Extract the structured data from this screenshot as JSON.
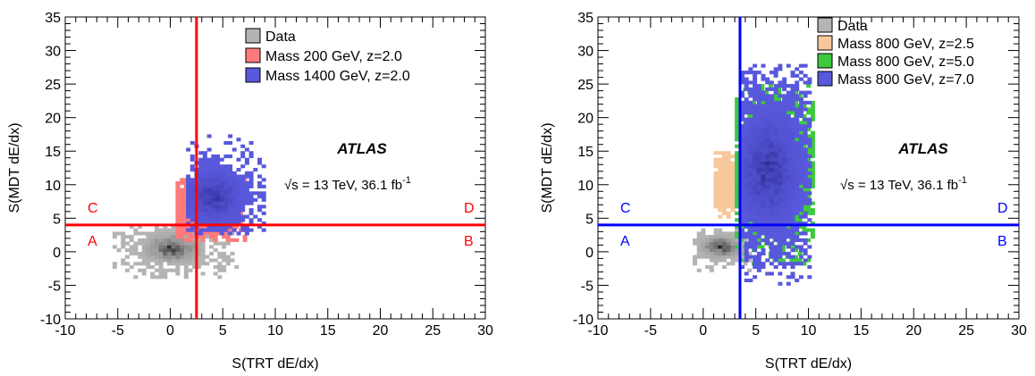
{
  "chart_data": [
    {
      "type": "heatmap",
      "xlabel": "S(TRT dE/dx)",
      "ylabel": "S(MDT dE/dx)",
      "xlim": [
        -10,
        30
      ],
      "ylim": [
        -10,
        35
      ],
      "x_ticks": [
        "-10",
        "-5",
        "0",
        "5",
        "10",
        "15",
        "20",
        "25",
        "30"
      ],
      "y_ticks": [
        "-10",
        "-5",
        "0",
        "5",
        "10",
        "15",
        "20",
        "25",
        "30",
        "35"
      ],
      "grid": false,
      "legend_position": "top-right",
      "experiment_label": "ATLAS",
      "energy_label": "√s = 13 TeV, 36.1 fb",
      "energy_sup": "-1",
      "cut_lines": {
        "x": 2.5,
        "y": 4.0,
        "color": "#ff0000"
      },
      "region_labels": [
        "C",
        "A",
        "D",
        "B"
      ],
      "series": [
        {
          "name": "Data",
          "color": "#b4b4b4",
          "dark": "#000000",
          "center": [
            0.0,
            0.3
          ],
          "spread": [
            2.2,
            1.8
          ],
          "x_range": [
            -5.5,
            6.5
          ],
          "y_range": [
            -4.0,
            4.0
          ]
        },
        {
          "name": "Mass 200 GeV, z=2.0",
          "color": "#ff7b7b",
          "dark": "#ff7b7b",
          "center": [
            3.0,
            5.8
          ],
          "spread": [
            2.0,
            2.6
          ],
          "x_range": [
            0.5,
            7.0
          ],
          "y_range": [
            1.5,
            11.0
          ]
        },
        {
          "name": "Mass 1400 GeV, z=2.0",
          "color": "#5858dc",
          "dark": "#232382",
          "center": [
            4.0,
            8.0
          ],
          "spread": [
            2.2,
            3.0
          ],
          "x_range": [
            1.5,
            9.0
          ],
          "y_range": [
            2.5,
            17.5
          ]
        }
      ]
    },
    {
      "type": "heatmap",
      "xlabel": "S(TRT dE/dx)",
      "ylabel": "S(MDT dE/dx)",
      "xlim": [
        -10,
        30
      ],
      "ylim": [
        -10,
        35
      ],
      "x_ticks": [
        "-10",
        "-5",
        "0",
        "5",
        "10",
        "15",
        "20",
        "25",
        "30"
      ],
      "y_ticks": [
        "-10",
        "-5",
        "0",
        "5",
        "10",
        "15",
        "20",
        "25",
        "30",
        "35"
      ],
      "grid": false,
      "legend_position": "top-right",
      "experiment_label": "ATLAS",
      "energy_label": "√s = 13 TeV, 36.1 fb",
      "energy_sup": "-1",
      "cut_lines": {
        "x": 3.5,
        "y": 4.0,
        "color": "#0000ff"
      },
      "region_labels": [
        "C",
        "A",
        "D",
        "B"
      ],
      "series": [
        {
          "name": "Data",
          "color": "#b4b4b4",
          "dark": "#000000",
          "center": [
            1.5,
            0.5
          ],
          "spread": [
            1.6,
            1.4
          ],
          "x_range": [
            -1.0,
            4.5
          ],
          "y_range": [
            -3.0,
            3.5
          ]
        },
        {
          "name": "Mass 800 GeV, z=2.5",
          "color": "#f6c89a",
          "dark": "#f6c89a",
          "center": [
            2.0,
            10.0
          ],
          "spread": [
            0.9,
            2.6
          ],
          "x_range": [
            1.0,
            4.0
          ],
          "y_range": [
            5.0,
            15.0
          ]
        },
        {
          "name": "Mass 800 GeV, z=5.0",
          "color": "#3ec83e",
          "dark": "#3ec83e",
          "center": [
            6.5,
            12.0
          ],
          "spread": [
            2.4,
            6.0
          ],
          "x_range": [
            3.0,
            10.5
          ],
          "y_range": [
            -2.0,
            25.0
          ]
        },
        {
          "name": "Mass 800 GeV, z=7.0",
          "color": "#5858dc",
          "dark": "#232382",
          "center": [
            6.0,
            12.0
          ],
          "spread": [
            2.4,
            7.0
          ],
          "x_range": [
            3.5,
            10.0
          ],
          "y_range": [
            -5.0,
            28.0
          ]
        }
      ]
    }
  ]
}
